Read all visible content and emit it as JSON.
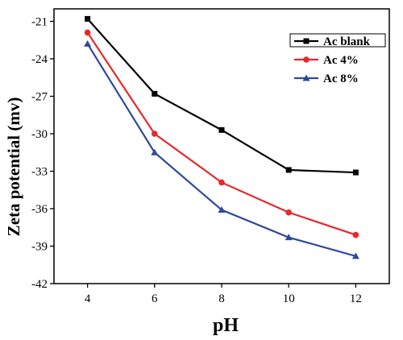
{
  "chart_data": {
    "type": "line",
    "xlabel": "pH",
    "ylabel": "Zeta potential (mv)",
    "x": [
      4,
      6,
      8,
      10,
      12
    ],
    "xticks": [
      "4",
      "6",
      "8",
      "10",
      "12"
    ],
    "yticks": [
      "-21",
      "-24",
      "-27",
      "-30",
      "-33",
      "-36",
      "-39",
      "-42"
    ],
    "xlim": [
      3,
      13
    ],
    "ylim": [
      -42,
      -20
    ],
    "grid": false,
    "legend_position": "top-right",
    "series": [
      {
        "name": "Ac blank",
        "color": "#000000",
        "marker": "square",
        "values": [
          -20.8,
          -26.8,
          -29.7,
          -32.9,
          -33.1
        ]
      },
      {
        "name": "Ac 4%",
        "color": "#e8282b",
        "marker": "circle",
        "values": [
          -21.9,
          -30.0,
          -33.9,
          -36.3,
          -38.1
        ]
      },
      {
        "name": "Ac 8%",
        "color": "#2e4a9e",
        "marker": "triangle",
        "values": [
          -22.8,
          -31.5,
          -36.1,
          -38.3,
          -39.8
        ]
      }
    ]
  }
}
